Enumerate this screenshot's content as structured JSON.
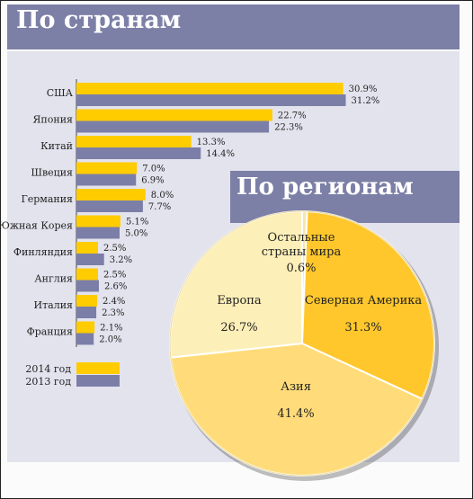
{
  "titles": {
    "countries": "По странам",
    "regions": "По регионам"
  },
  "chart_data": [
    {
      "type": "bar",
      "categories": [
        "США",
        "Япония",
        "Китай",
        "Швеция",
        "Германия",
        "Южная Корея",
        "Финляндия",
        "Англия",
        "Италия",
        "Франция"
      ],
      "series": [
        {
          "name": "2014 год",
          "color": "#ffcc00",
          "values": [
            30.9,
            22.7,
            13.3,
            7.0,
            8.0,
            5.1,
            2.5,
            2.5,
            2.4,
            2.1
          ],
          "labels": [
            "30.9%",
            "22.7%",
            "13.3%",
            "7.0%",
            "8.0%",
            "5.1%",
            "2.5%",
            "2.5%",
            "2.4%",
            "2.1%"
          ]
        },
        {
          "name": "2013 год",
          "color": "#7b7fa8",
          "values": [
            31.2,
            22.3,
            14.4,
            6.9,
            7.7,
            5.0,
            3.2,
            2.6,
            2.3,
            2.0
          ],
          "labels": [
            "31.2%",
            "22.3%",
            "14.4%",
            "6.9%",
            "7.7%",
            "5.0%",
            "3.2%",
            "2.6%",
            "2.3%",
            "2.0%"
          ]
        }
      ],
      "orientation": "horizontal",
      "legend": [
        "2014 год",
        "2013 год"
      ],
      "legend_position": "bottom-left"
    },
    {
      "type": "pie",
      "slices": [
        {
          "label_lines": [
            "Остальные",
            "страны мира"
          ],
          "value": 0.6,
          "value_label": "0.6%",
          "color": "#f6e6b0"
        },
        {
          "label_lines": [
            "Северная Америка"
          ],
          "value": 31.3,
          "value_label": "31.3%",
          "color": "#ffc72c"
        },
        {
          "label_lines": [
            "Азия"
          ],
          "value": 41.4,
          "value_label": "41.4%",
          "color": "#ffdc79"
        },
        {
          "label_lines": [
            "Европа"
          ],
          "value": 26.7,
          "value_label": "26.7%",
          "color": "#fdefb8"
        }
      ]
    }
  ]
}
